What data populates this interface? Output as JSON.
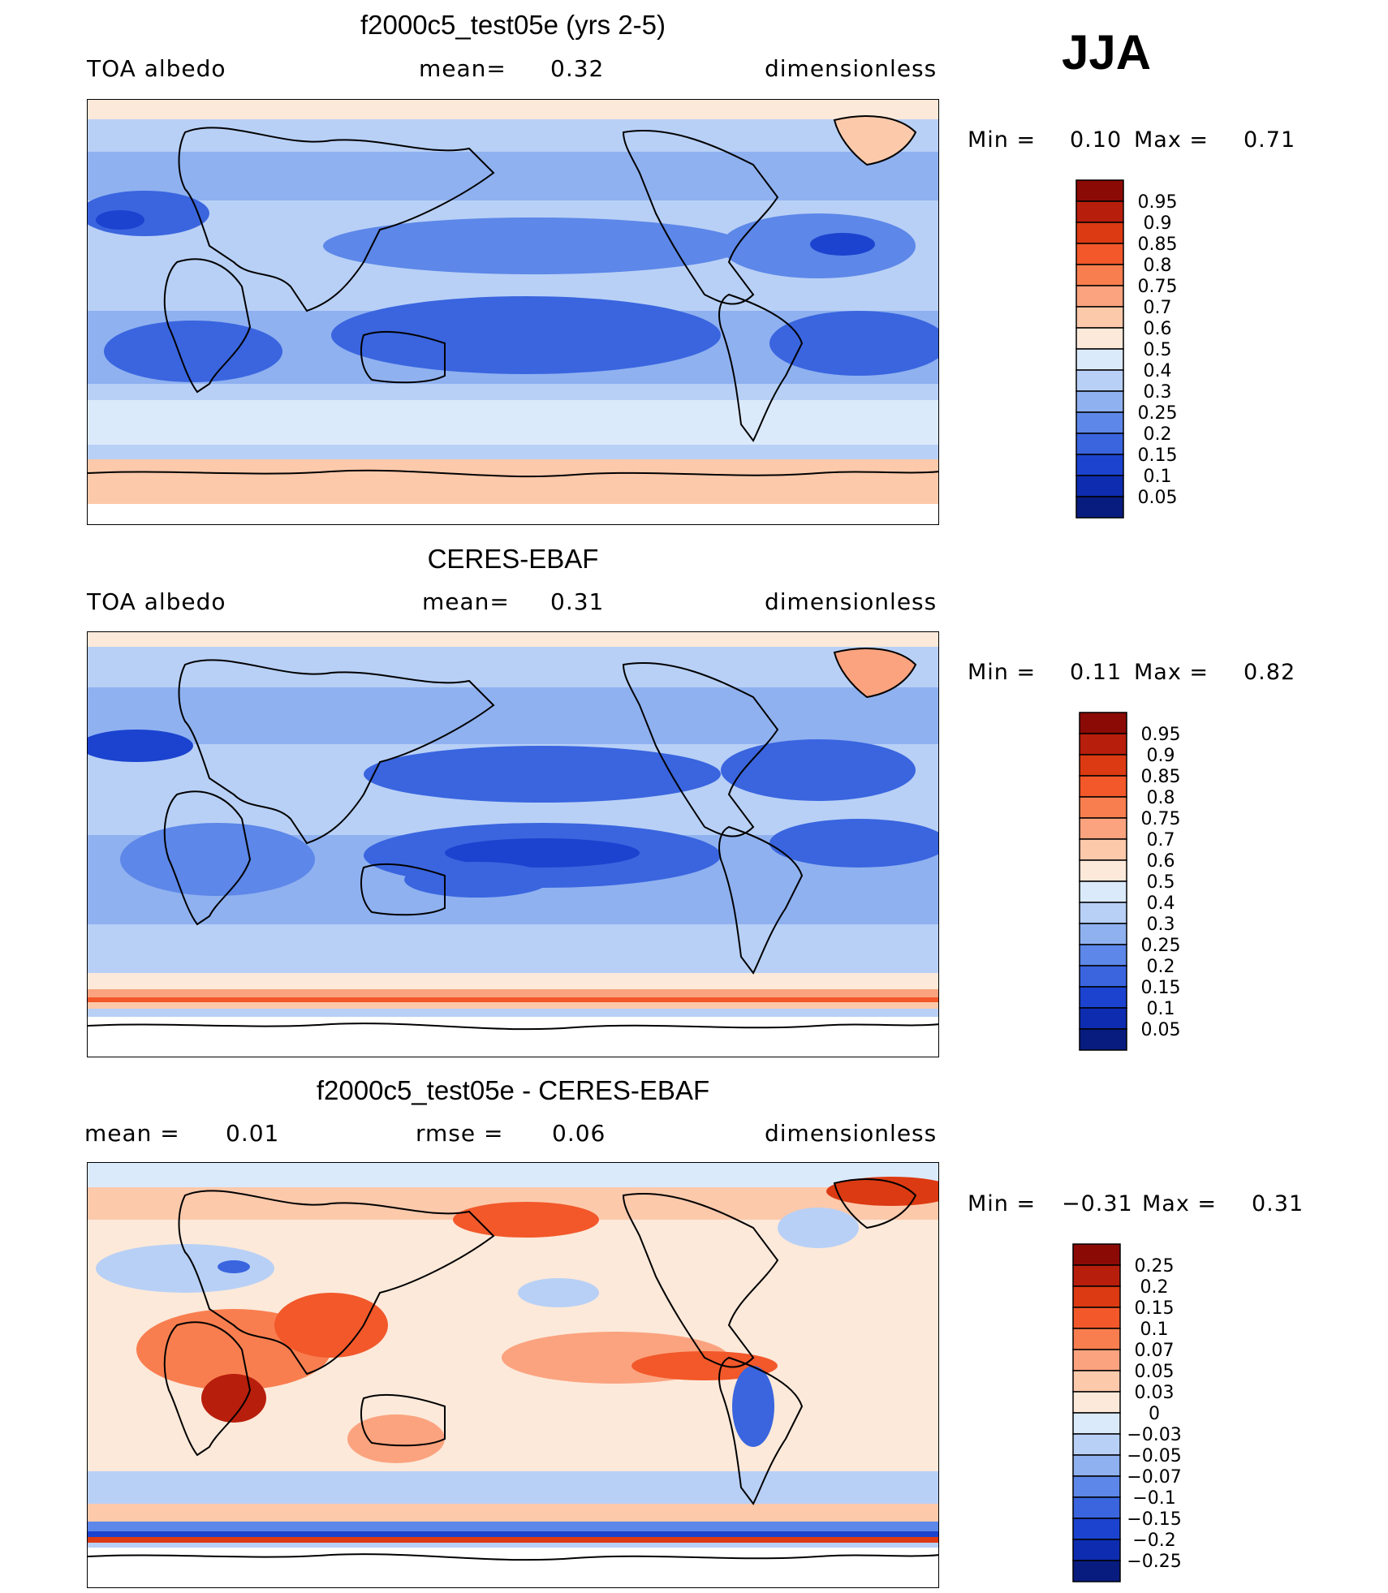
{
  "season": "JJA",
  "panels": [
    {
      "title": "f2000c5_test05e (yrs 2-5)",
      "left_label": "TOA albedo",
      "mean_label": "mean=",
      "mean_value": "0.32",
      "units": "dimensionless",
      "min_label": "Min =",
      "min_value": "0.10",
      "max_label": "Max =",
      "max_value": "0.71",
      "colorbar_labels": [
        "0.95",
        "0.9",
        "0.85",
        "0.8",
        "0.75",
        "0.7",
        "0.6",
        "0.5",
        "0.4",
        "0.3",
        "0.25",
        "0.2",
        "0.15",
        "0.1",
        "0.05"
      ],
      "colorbar_colors": [
        "#8b0a05",
        "#b81e0c",
        "#dc3a12",
        "#f2582a",
        "#f97e4f",
        "#fba37f",
        "#fcc9ab",
        "#fce9da",
        "#dbeafb",
        "#b8d0f6",
        "#8fb1f0",
        "#5d87e8",
        "#3a65df",
        "#1b43cf",
        "#0d2cb0",
        "#081c7f"
      ]
    },
    {
      "title": "CERES-EBAF",
      "left_label": "TOA albedo",
      "mean_label": "mean=",
      "mean_value": "0.31",
      "units": "dimensionless",
      "min_label": "Min =",
      "min_value": "0.11",
      "max_label": "Max =",
      "max_value": "0.82",
      "colorbar_labels": [
        "0.95",
        "0.9",
        "0.85",
        "0.8",
        "0.75",
        "0.7",
        "0.6",
        "0.5",
        "0.4",
        "0.3",
        "0.25",
        "0.2",
        "0.15",
        "0.1",
        "0.05"
      ],
      "colorbar_colors": [
        "#8b0a05",
        "#b81e0c",
        "#dc3a12",
        "#f2582a",
        "#f97e4f",
        "#fba37f",
        "#fcc9ab",
        "#fce9da",
        "#dbeafb",
        "#b8d0f6",
        "#8fb1f0",
        "#5d87e8",
        "#3a65df",
        "#1b43cf",
        "#0d2cb0",
        "#081c7f"
      ]
    },
    {
      "title": "f2000c5_test05e - CERES-EBAF",
      "left_label": "mean =",
      "left_value": "0.01",
      "mean_label": "rmse =",
      "mean_value": "0.06",
      "units": "dimensionless",
      "min_label": "Min =",
      "min_value": "−0.31",
      "max_label": "Max =",
      "max_value": "0.31",
      "colorbar_labels": [
        "0.25",
        "0.2",
        "0.15",
        "0.1",
        "0.07",
        "0.05",
        "0.03",
        "0",
        "−0.03",
        "−0.05",
        "−0.07",
        "−0.1",
        "−0.15",
        "−0.2",
        "−0.25"
      ],
      "colorbar_colors": [
        "#8b0a05",
        "#b81e0c",
        "#dc3a12",
        "#f2582a",
        "#f97e4f",
        "#fba37f",
        "#fcc9ab",
        "#fce9da",
        "#dbeafb",
        "#b8d0f6",
        "#8fb1f0",
        "#5d87e8",
        "#3a65df",
        "#1b43cf",
        "#0d2cb0",
        "#081c7f"
      ]
    }
  ],
  "chart_data": [
    {
      "type": "heatmap",
      "title": "f2000c5_test05e (yrs 2-5)",
      "variable": "TOA albedo",
      "units": "dimensionless",
      "mean": 0.32,
      "min": 0.1,
      "max": 0.71,
      "levels": [
        0.05,
        0.1,
        0.15,
        0.2,
        0.25,
        0.3,
        0.4,
        0.5,
        0.6,
        0.7,
        0.75,
        0.8,
        0.85,
        0.9,
        0.95
      ]
    },
    {
      "type": "heatmap",
      "title": "CERES-EBAF",
      "variable": "TOA albedo",
      "units": "dimensionless",
      "mean": 0.31,
      "min": 0.11,
      "max": 0.82,
      "levels": [
        0.05,
        0.1,
        0.15,
        0.2,
        0.25,
        0.3,
        0.4,
        0.5,
        0.6,
        0.7,
        0.75,
        0.8,
        0.85,
        0.9,
        0.95
      ]
    },
    {
      "type": "heatmap",
      "title": "f2000c5_test05e - CERES-EBAF",
      "units": "dimensionless",
      "mean": 0.01,
      "rmse": 0.06,
      "min": -0.31,
      "max": 0.31,
      "levels": [
        -0.25,
        -0.2,
        -0.15,
        -0.1,
        -0.07,
        -0.05,
        -0.03,
        0,
        0.03,
        0.05,
        0.07,
        0.1,
        0.15,
        0.2,
        0.25
      ]
    }
  ]
}
